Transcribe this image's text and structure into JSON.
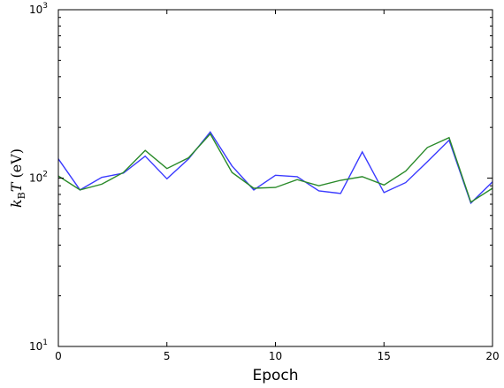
{
  "chart_data": {
    "type": "line",
    "title": "",
    "xlabel": "Epoch",
    "ylabel": "k_B T (eV)",
    "ylabel_parts": {
      "k": "k",
      "sub": "B",
      "T": "T",
      "unit": " (eV)"
    },
    "xlim": [
      0,
      20
    ],
    "ylim": [
      10,
      1000
    ],
    "yscale": "log",
    "grid": false,
    "x": [
      0,
      1,
      2,
      3,
      4,
      5,
      6,
      7,
      8,
      9,
      10,
      11,
      12,
      13,
      14,
      15,
      16,
      17,
      18,
      19,
      20
    ],
    "x_ticks": [
      "0",
      "5",
      "10",
      "15",
      "20"
    ],
    "y_ticks": [
      {
        "base": "10",
        "exp": "1"
      },
      {
        "base": "10",
        "exp": "2"
      },
      {
        "base": "10",
        "exp": "3"
      }
    ],
    "series": [
      {
        "color": "#3a3aff",
        "values": [
          130,
          85,
          101,
          107,
          135,
          99,
          130,
          188,
          118,
          85,
          104,
          102,
          84,
          81,
          143,
          82,
          94,
          125,
          168,
          71,
          95
        ]
      },
      {
        "color": "#2a8a2a",
        "values": [
          103,
          85,
          92,
          108,
          146,
          114,
          132,
          183,
          108,
          87,
          88,
          98,
          90,
          97,
          102,
          91,
          110,
          152,
          174,
          72,
          87
        ]
      }
    ]
  }
}
